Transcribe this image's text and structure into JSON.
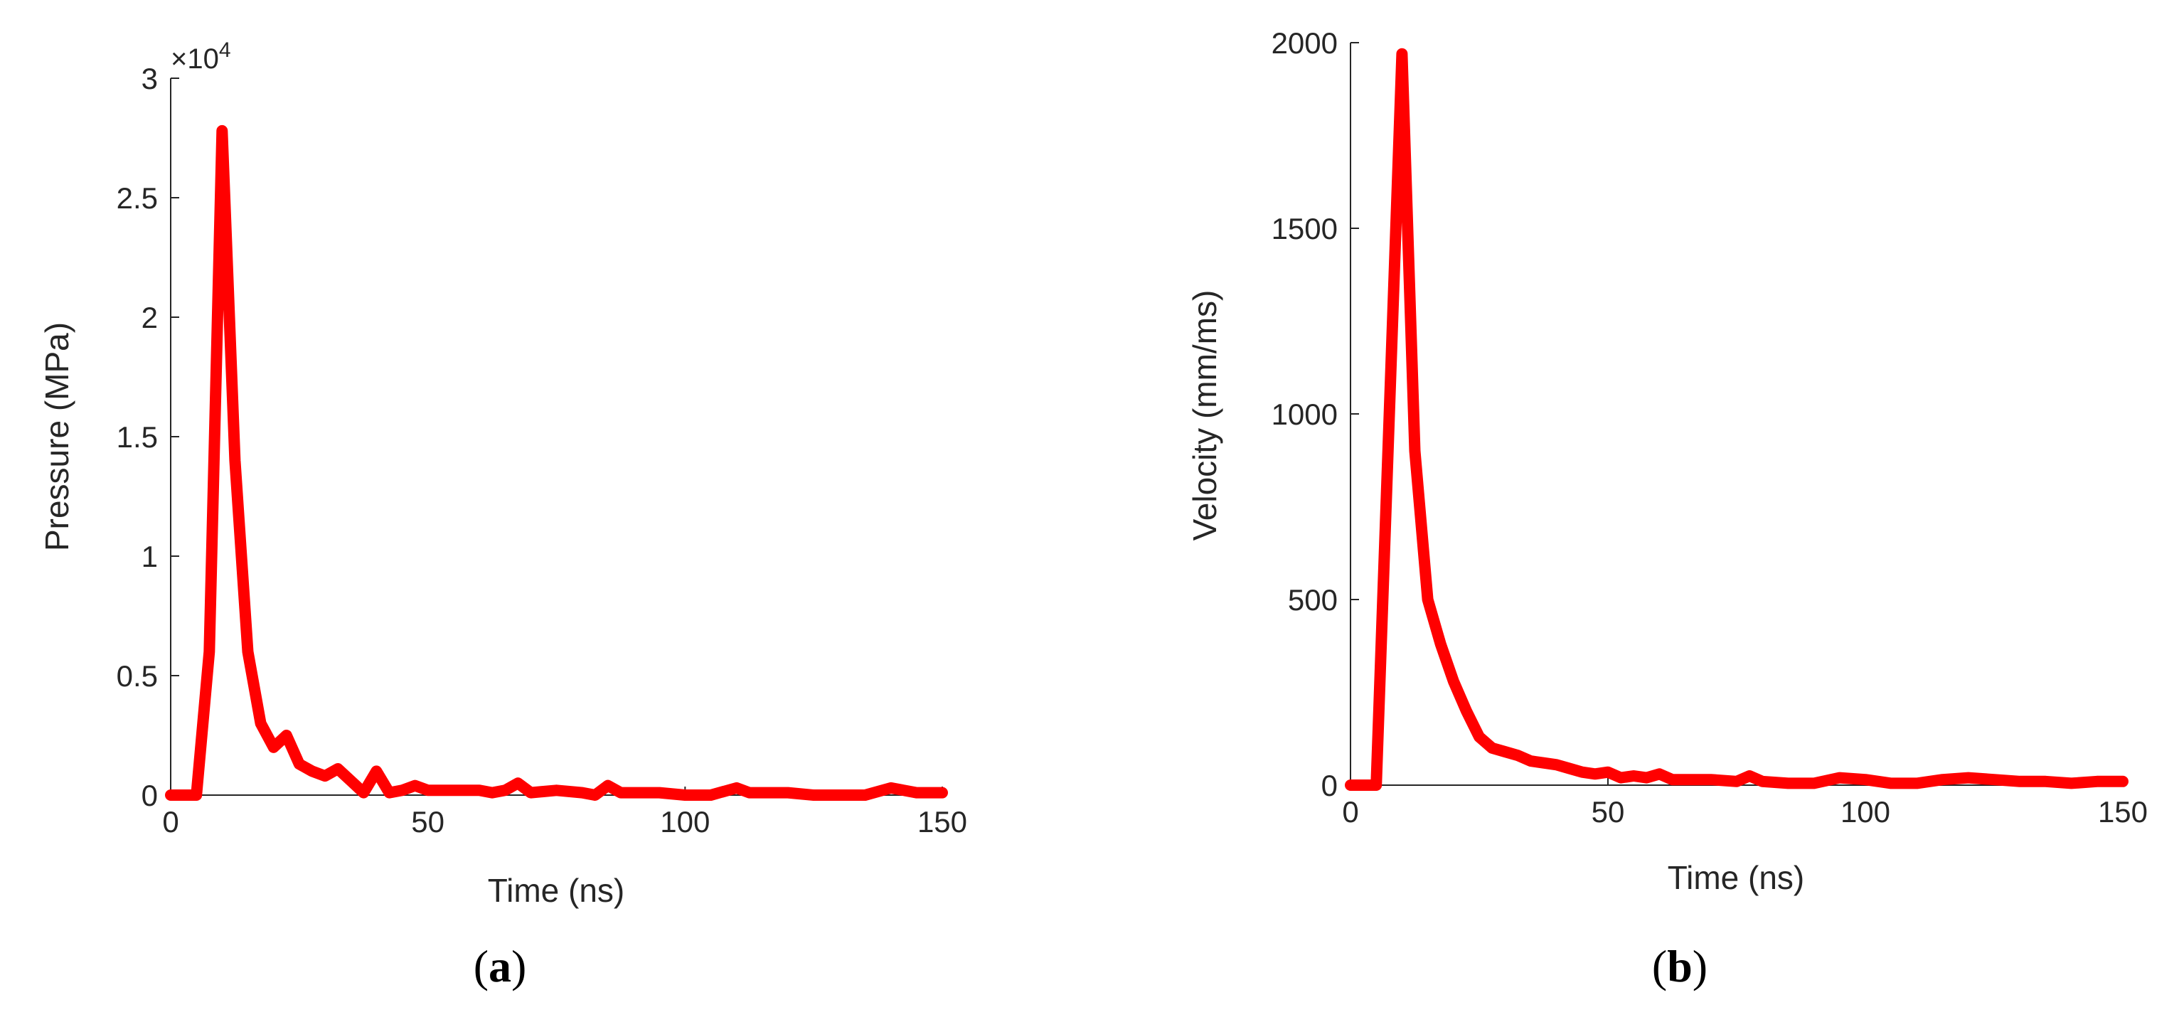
{
  "chart_data": [
    {
      "type": "line",
      "panel": {
        "open": "(",
        "letter": "a",
        "close": ")"
      },
      "xlabel": "Time (ns)",
      "ylabel": "Pressure (MPa)",
      "y_exponent": {
        "base": "×10",
        "power": "4"
      },
      "xlim": [
        0,
        150
      ],
      "ylim": [
        0,
        3
      ],
      "xticks": [
        0,
        50,
        100,
        150
      ],
      "yticks": [
        0,
        0.5,
        1,
        1.5,
        2,
        2.5,
        3
      ],
      "ytick_labels": [
        "0",
        "0.5",
        "1",
        "1.5",
        "2",
        "2.5",
        "3"
      ],
      "grid": false,
      "color": "#ff0000",
      "series": [
        {
          "x": [
            0,
            5,
            7.5,
            10,
            12.5,
            15,
            17.5,
            20,
            22.5,
            25,
            27.5,
            30,
            32.5,
            35,
            37.5,
            40,
            42.5,
            45,
            47.5,
            50,
            55,
            60,
            62.5,
            65,
            67.5,
            70,
            75,
            80,
            82.5,
            85,
            87.5,
            90,
            95,
            100,
            105,
            110,
            112.5,
            115,
            120,
            125,
            130,
            135,
            140,
            145,
            150
          ],
          "y": [
            0,
            0,
            0.6,
            2.78,
            1.4,
            0.6,
            0.3,
            0.2,
            0.25,
            0.13,
            0.1,
            0.08,
            0.11,
            0.06,
            0.01,
            0.1,
            0.01,
            0.02,
            0.04,
            0.02,
            0.02,
            0.02,
            0.01,
            0.02,
            0.05,
            0.01,
            0.02,
            0.01,
            0.0,
            0.04,
            0.01,
            0.01,
            0.01,
            0.0,
            0.0,
            0.03,
            0.01,
            0.01,
            0.01,
            0.0,
            0.0,
            0.0,
            0.03,
            0.01,
            0.01
          ]
        }
      ]
    },
    {
      "type": "line",
      "panel": {
        "open": "(",
        "letter": "b",
        "close": ")"
      },
      "xlabel": "Time (ns)",
      "ylabel": "Velocity (mm/ms)",
      "xlim": [
        0,
        150
      ],
      "ylim": [
        0,
        2000
      ],
      "xticks": [
        0,
        50,
        100,
        150
      ],
      "yticks": [
        0,
        500,
        1000,
        1500,
        2000
      ],
      "ytick_labels": [
        "0",
        "500",
        "1000",
        "1500",
        "2000"
      ],
      "grid": false,
      "color": "#ff0000",
      "series": [
        {
          "x": [
            0,
            5,
            10,
            12.5,
            15,
            17.5,
            20,
            22.5,
            25,
            27.5,
            30,
            32.5,
            35,
            37.5,
            40,
            42.5,
            45,
            47.5,
            50,
            52.5,
            55,
            57.5,
            60,
            62.5,
            65,
            70,
            75,
            77.5,
            80,
            85,
            90,
            95,
            100,
            105,
            110,
            115,
            120,
            125,
            130,
            135,
            140,
            145,
            150
          ],
          "y": [
            0,
            0,
            1970,
            900,
            500,
            380,
            280,
            200,
            130,
            100,
            90,
            80,
            65,
            60,
            55,
            45,
            35,
            30,
            35,
            20,
            25,
            20,
            30,
            15,
            15,
            15,
            10,
            25,
            10,
            5,
            5,
            20,
            15,
            5,
            5,
            15,
            20,
            15,
            10,
            10,
            5,
            10,
            10
          ]
        }
      ]
    }
  ]
}
